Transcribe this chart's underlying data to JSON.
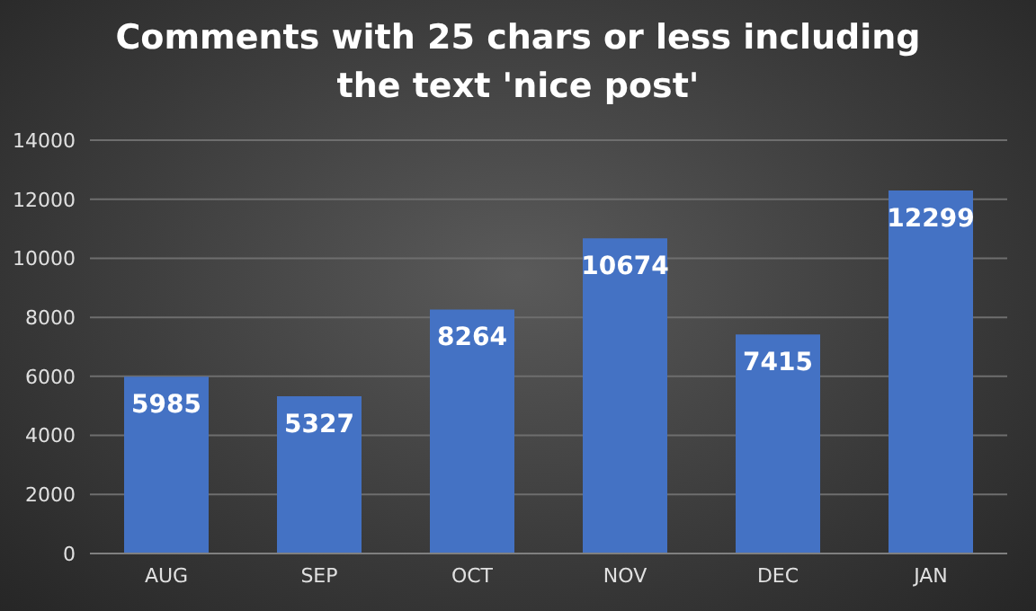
{
  "chart_data": {
    "type": "bar",
    "title": "Comments with 25 chars or less including the text 'nice post'",
    "categories": [
      "AUG",
      "SEP",
      "OCT",
      "NOV",
      "DEC",
      "JAN"
    ],
    "values": [
      5985,
      5327,
      8264,
      10674,
      7415,
      12299
    ],
    "color": "#4472c4",
    "ylim": [
      0,
      14000
    ],
    "yticks": [
      0,
      2000,
      4000,
      6000,
      8000,
      10000,
      12000,
      14000
    ],
    "grid": "y",
    "data_labels": true
  }
}
